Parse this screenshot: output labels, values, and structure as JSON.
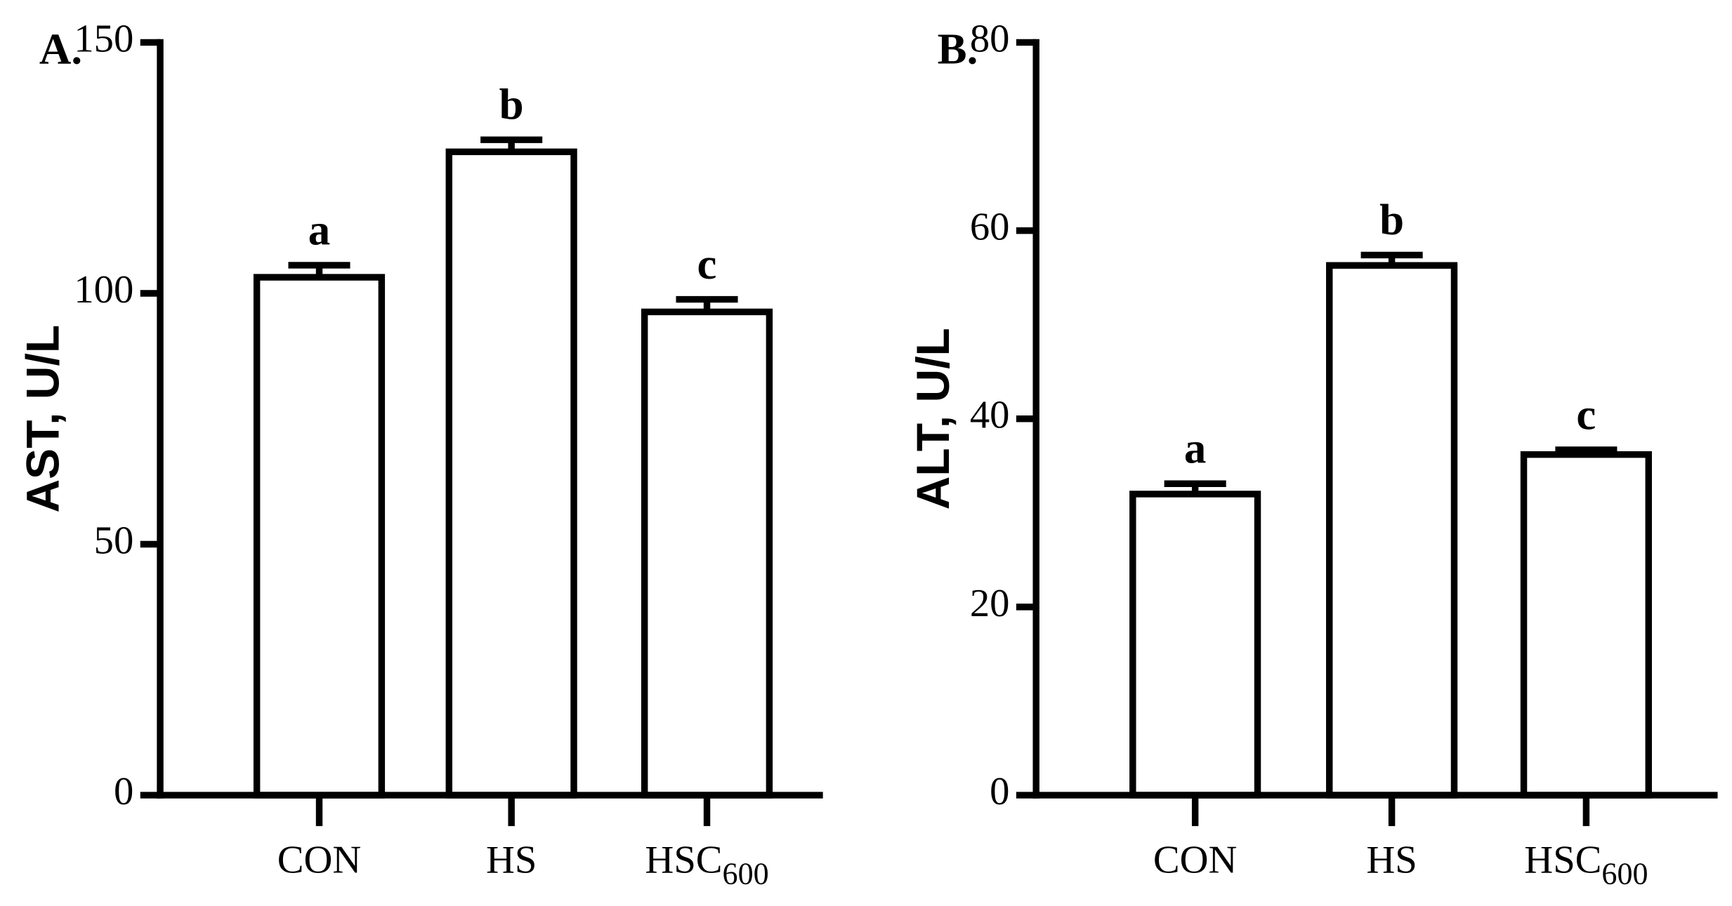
{
  "chart_data": [
    {
      "type": "bar",
      "panel_label": "A.",
      "ylabel": "AST, U/L",
      "categories": [
        "CON",
        "HS",
        "HSC"
      ],
      "category_subscripts": [
        null,
        null,
        "600"
      ],
      "values": [
        103.2,
        128.2,
        96.3
      ],
      "errors": [
        2.4,
        2.4,
        2.5
      ],
      "letters": [
        "a",
        "b",
        "c"
      ],
      "ylim": [
        0,
        150
      ],
      "yticks": [
        0,
        50,
        100,
        150
      ],
      "color": "#ffffff",
      "edgecolor": "#000000"
    },
    {
      "type": "bar",
      "panel_label": "B.",
      "ylabel": "ALT, U/L",
      "categories": [
        "CON",
        "HS",
        "HSC"
      ],
      "category_subscripts": [
        null,
        null,
        "600"
      ],
      "values": [
        32.0,
        56.3,
        36.2
      ],
      "errors": [
        1.1,
        1.1,
        0.5
      ],
      "letters": [
        "a",
        "b",
        "c"
      ],
      "ylim": [
        0,
        80
      ],
      "yticks": [
        0,
        20,
        40,
        60,
        80
      ],
      "color": "#ffffff",
      "edgecolor": "#000000"
    }
  ]
}
